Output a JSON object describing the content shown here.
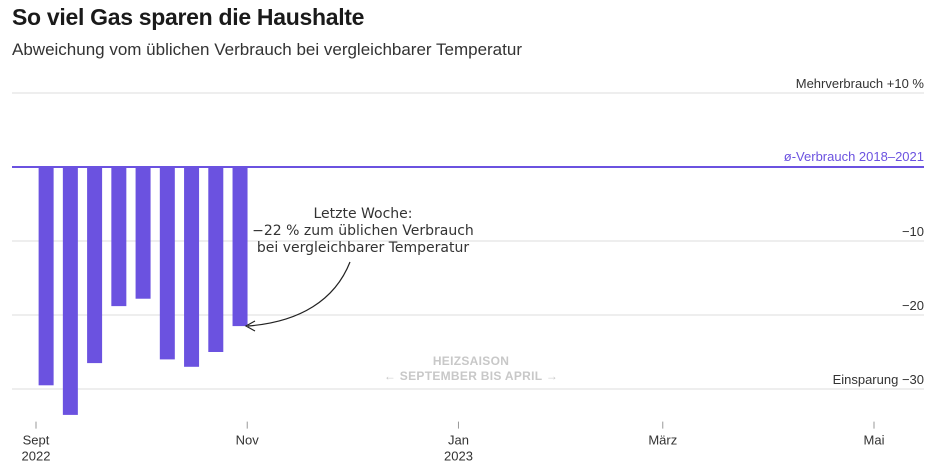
{
  "header": {
    "title": "So viel Gas sparen die Haushalte",
    "subtitle": "Abweichung vom üblichen Verbrauch bei vergleichbarer Temperatur"
  },
  "chart_data": {
    "type": "bar",
    "ylim": [
      -34,
      11
    ],
    "yticks": [
      {
        "value": 10,
        "label": "Mehrverbrauch +10 %"
      },
      {
        "value": -10,
        "label": "−10"
      },
      {
        "value": -20,
        "label": "−20"
      },
      {
        "value": -30,
        "label": "Einsparung −30"
      }
    ],
    "reference": {
      "value": 0,
      "label": "ø-Verbrauch 2018–2021"
    },
    "values": [
      -29.5,
      -33.5,
      -26.5,
      -18.8,
      -17.8,
      -26,
      -27,
      -25,
      -21.5
    ],
    "x_start": "2022-09-01",
    "week_days": 7,
    "xticks": [
      {
        "date": "2022-09-01",
        "line1": "Sept",
        "line2": "2022"
      },
      {
        "date": "2022-11-01",
        "line1": "Nov",
        "line2": ""
      },
      {
        "date": "2023-01-01",
        "line1": "Jan",
        "line2": "2023"
      },
      {
        "date": "2023-03-01",
        "line1": "März",
        "line2": ""
      },
      {
        "date": "2023-05-01",
        "line1": "Mai",
        "line2": ""
      }
    ],
    "annotation": {
      "lines": [
        "Letzte Woche:",
        "−22 % zum üblichen Verbrauch",
        "bei vergleichbarer Temperatur"
      ]
    },
    "season": {
      "line1": "HEIZSAISON",
      "line2": "← SEPTEMBER BIS APRIL →"
    },
    "colors": {
      "bar": "#6b52e0",
      "reference": "#6b52e0"
    },
    "grid": true
  }
}
